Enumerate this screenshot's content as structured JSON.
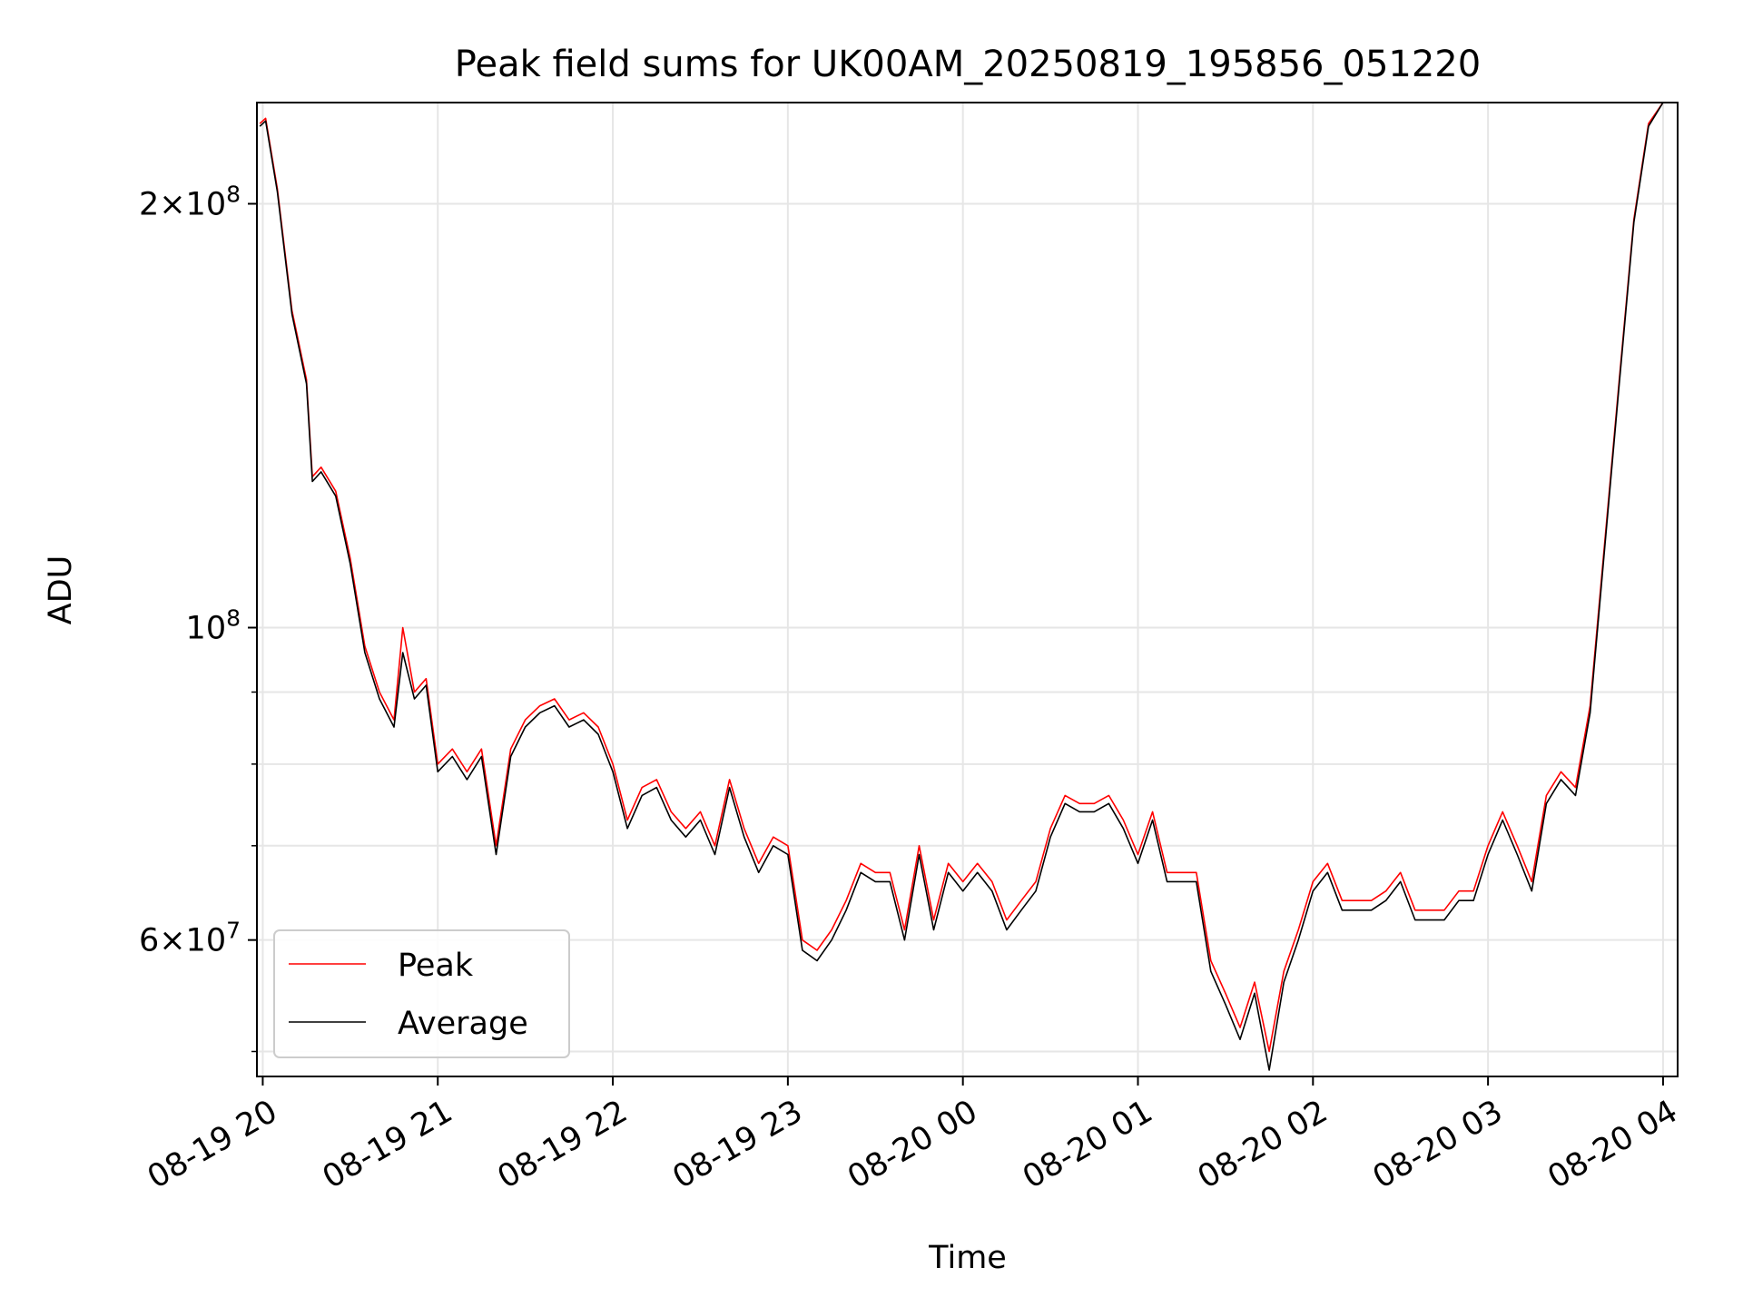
{
  "chart_data": {
    "type": "line",
    "title": "Peak field sums for UK00AM_20250819_195856_051220",
    "xlabel": "Time",
    "ylabel": "ADU",
    "yscale": "log",
    "grid": true,
    "legend_position": "lower-left",
    "x_range": [
      "2025-08-19 19:58",
      "2025-08-20 04:05"
    ],
    "ylim": [
      48000000,
      236000000
    ],
    "x_ticks": [
      {
        "t": "2025-08-19 20:00",
        "label": "08-19 20"
      },
      {
        "t": "2025-08-19 21:00",
        "label": "08-19 21"
      },
      {
        "t": "2025-08-19 22:00",
        "label": "08-19 22"
      },
      {
        "t": "2025-08-19 23:00",
        "label": "08-19 23"
      },
      {
        "t": "2025-08-20 00:00",
        "label": "08-20 00"
      },
      {
        "t": "2025-08-20 01:00",
        "label": "08-20 01"
      },
      {
        "t": "2025-08-20 02:00",
        "label": "08-20 02"
      },
      {
        "t": "2025-08-20 03:00",
        "label": "08-20 03"
      },
      {
        "t": "2025-08-20 04:00",
        "label": "08-20 04"
      }
    ],
    "y_ticks": [
      {
        "value": 60000000,
        "label_mant": "6",
        "label_exp": "7"
      },
      {
        "value": 100000000,
        "label_mant": "",
        "label_exp": "8"
      },
      {
        "value": 200000000,
        "label_mant": "2",
        "label_exp": "8"
      }
    ],
    "y_minor": [
      50000000,
      70000000,
      80000000,
      90000000
    ],
    "series": [
      {
        "name": "Peak",
        "color": "#ff0000",
        "x": [
          "2025-08-19 19:59",
          "2025-08-19 20:01",
          "2025-08-19 20:05",
          "2025-08-19 20:10",
          "2025-08-19 20:15",
          "2025-08-19 20:17",
          "2025-08-19 20:20",
          "2025-08-19 20:25",
          "2025-08-19 20:30",
          "2025-08-19 20:35",
          "2025-08-19 20:40",
          "2025-08-19 20:45",
          "2025-08-19 20:48",
          "2025-08-19 20:52",
          "2025-08-19 20:56",
          "2025-08-19 21:00",
          "2025-08-19 21:05",
          "2025-08-19 21:10",
          "2025-08-19 21:15",
          "2025-08-19 21:20",
          "2025-08-19 21:25",
          "2025-08-19 21:30",
          "2025-08-19 21:35",
          "2025-08-19 21:40",
          "2025-08-19 21:45",
          "2025-08-19 21:50",
          "2025-08-19 21:55",
          "2025-08-19 22:00",
          "2025-08-19 22:05",
          "2025-08-19 22:10",
          "2025-08-19 22:15",
          "2025-08-19 22:20",
          "2025-08-19 22:25",
          "2025-08-19 22:30",
          "2025-08-19 22:35",
          "2025-08-19 22:40",
          "2025-08-19 22:45",
          "2025-08-19 22:50",
          "2025-08-19 22:55",
          "2025-08-19 23:00",
          "2025-08-19 23:05",
          "2025-08-19 23:10",
          "2025-08-19 23:15",
          "2025-08-19 23:20",
          "2025-08-19 23:25",
          "2025-08-19 23:30",
          "2025-08-19 23:35",
          "2025-08-19 23:40",
          "2025-08-19 23:45",
          "2025-08-19 23:50",
          "2025-08-19 23:55",
          "2025-08-20 00:00",
          "2025-08-20 00:05",
          "2025-08-20 00:10",
          "2025-08-20 00:15",
          "2025-08-20 00:20",
          "2025-08-20 00:25",
          "2025-08-20 00:30",
          "2025-08-20 00:35",
          "2025-08-20 00:40",
          "2025-08-20 00:45",
          "2025-08-20 00:50",
          "2025-08-20 00:55",
          "2025-08-20 01:00",
          "2025-08-20 01:05",
          "2025-08-20 01:10",
          "2025-08-20 01:15",
          "2025-08-20 01:20",
          "2025-08-20 01:25",
          "2025-08-20 01:30",
          "2025-08-20 01:35",
          "2025-08-20 01:40",
          "2025-08-20 01:45",
          "2025-08-20 01:50",
          "2025-08-20 01:55",
          "2025-08-20 02:00",
          "2025-08-20 02:05",
          "2025-08-20 02:10",
          "2025-08-20 02:15",
          "2025-08-20 02:20",
          "2025-08-20 02:25",
          "2025-08-20 02:30",
          "2025-08-20 02:35",
          "2025-08-20 02:40",
          "2025-08-20 02:45",
          "2025-08-20 02:50",
          "2025-08-20 02:55",
          "2025-08-20 03:00",
          "2025-08-20 03:05",
          "2025-08-20 03:10",
          "2025-08-20 03:15",
          "2025-08-20 03:20",
          "2025-08-20 03:25",
          "2025-08-20 03:30",
          "2025-08-20 03:35",
          "2025-08-20 03:40",
          "2025-08-20 03:45",
          "2025-08-20 03:50",
          "2025-08-20 03:55",
          "2025-08-20 04:00"
        ],
        "y": [
          228000000,
          230000000,
          205000000,
          168000000,
          150000000,
          128000000,
          130000000,
          125000000,
          112000000,
          97000000,
          90000000,
          86000000,
          100000000,
          90000000,
          92000000,
          80000000,
          82000000,
          79000000,
          82000000,
          70000000,
          82000000,
          86000000,
          88000000,
          89000000,
          86000000,
          87000000,
          85000000,
          80000000,
          73000000,
          77000000,
          78000000,
          74000000,
          72000000,
          74000000,
          70000000,
          78000000,
          72000000,
          68000000,
          71000000,
          70000000,
          60000000,
          59000000,
          61000000,
          64000000,
          68000000,
          67000000,
          67000000,
          61000000,
          70000000,
          62000000,
          68000000,
          66000000,
          68000000,
          66000000,
          62000000,
          64000000,
          66000000,
          72000000,
          76000000,
          75000000,
          75000000,
          76000000,
          73000000,
          69000000,
          74000000,
          67000000,
          67000000,
          67000000,
          58000000,
          55000000,
          52000000,
          56000000,
          50000000,
          57000000,
          61000000,
          66000000,
          68000000,
          64000000,
          64000000,
          64000000,
          65000000,
          67000000,
          63000000,
          63000000,
          63000000,
          65000000,
          65000000,
          70000000,
          74000000,
          70000000,
          66000000,
          76000000,
          79000000,
          77000000,
          88000000,
          115000000,
          150000000,
          195000000,
          228000000,
          236000000
        ]
      },
      {
        "name": "Average",
        "color": "#000000",
        "x": [
          "2025-08-19 19:59",
          "2025-08-19 20:01",
          "2025-08-19 20:05",
          "2025-08-19 20:10",
          "2025-08-19 20:15",
          "2025-08-19 20:17",
          "2025-08-19 20:20",
          "2025-08-19 20:25",
          "2025-08-19 20:30",
          "2025-08-19 20:35",
          "2025-08-19 20:40",
          "2025-08-19 20:45",
          "2025-08-19 20:48",
          "2025-08-19 20:52",
          "2025-08-19 20:56",
          "2025-08-19 21:00",
          "2025-08-19 21:05",
          "2025-08-19 21:10",
          "2025-08-19 21:15",
          "2025-08-19 21:20",
          "2025-08-19 21:25",
          "2025-08-19 21:30",
          "2025-08-19 21:35",
          "2025-08-19 21:40",
          "2025-08-19 21:45",
          "2025-08-19 21:50",
          "2025-08-19 21:55",
          "2025-08-19 22:00",
          "2025-08-19 22:05",
          "2025-08-19 22:10",
          "2025-08-19 22:15",
          "2025-08-19 22:20",
          "2025-08-19 22:25",
          "2025-08-19 22:30",
          "2025-08-19 22:35",
          "2025-08-19 22:40",
          "2025-08-19 22:45",
          "2025-08-19 22:50",
          "2025-08-19 22:55",
          "2025-08-19 23:00",
          "2025-08-19 23:05",
          "2025-08-19 23:10",
          "2025-08-19 23:15",
          "2025-08-19 23:20",
          "2025-08-19 23:25",
          "2025-08-19 23:30",
          "2025-08-19 23:35",
          "2025-08-19 23:40",
          "2025-08-19 23:45",
          "2025-08-19 23:50",
          "2025-08-19 23:55",
          "2025-08-20 00:00",
          "2025-08-20 00:05",
          "2025-08-20 00:10",
          "2025-08-20 00:15",
          "2025-08-20 00:20",
          "2025-08-20 00:25",
          "2025-08-20 00:30",
          "2025-08-20 00:35",
          "2025-08-20 00:40",
          "2025-08-20 00:45",
          "2025-08-20 00:50",
          "2025-08-20 00:55",
          "2025-08-20 01:00",
          "2025-08-20 01:05",
          "2025-08-20 01:10",
          "2025-08-20 01:15",
          "2025-08-20 01:20",
          "2025-08-20 01:25",
          "2025-08-20 01:30",
          "2025-08-20 01:35",
          "2025-08-20 01:40",
          "2025-08-20 01:45",
          "2025-08-20 01:50",
          "2025-08-20 01:55",
          "2025-08-20 02:00",
          "2025-08-20 02:05",
          "2025-08-20 02:10",
          "2025-08-20 02:15",
          "2025-08-20 02:20",
          "2025-08-20 02:25",
          "2025-08-20 02:30",
          "2025-08-20 02:35",
          "2025-08-20 02:40",
          "2025-08-20 02:45",
          "2025-08-20 02:50",
          "2025-08-20 02:55",
          "2025-08-20 03:00",
          "2025-08-20 03:05",
          "2025-08-20 03:10",
          "2025-08-20 03:15",
          "2025-08-20 03:20",
          "2025-08-20 03:25",
          "2025-08-20 03:30",
          "2025-08-20 03:35",
          "2025-08-20 03:40",
          "2025-08-20 03:45",
          "2025-08-20 03:50",
          "2025-08-20 03:55",
          "2025-08-20 04:00"
        ],
        "y": [
          227000000,
          229000000,
          204000000,
          167000000,
          149000000,
          127000000,
          129000000,
          124000000,
          111000000,
          96000000,
          89000000,
          85000000,
          96000000,
          89000000,
          91000000,
          79000000,
          81000000,
          78000000,
          81000000,
          69000000,
          81000000,
          85000000,
          87000000,
          88000000,
          85000000,
          86000000,
          84000000,
          79000000,
          72000000,
          76000000,
          77000000,
          73000000,
          71000000,
          73000000,
          69000000,
          77000000,
          71000000,
          67000000,
          70000000,
          69000000,
          59000000,
          58000000,
          60000000,
          63000000,
          67000000,
          66000000,
          66000000,
          60000000,
          69000000,
          61000000,
          67000000,
          65000000,
          67000000,
          65000000,
          61000000,
          63000000,
          65000000,
          71000000,
          75000000,
          74000000,
          74000000,
          75000000,
          72000000,
          68000000,
          73000000,
          66000000,
          66000000,
          66000000,
          57000000,
          54000000,
          51000000,
          55000000,
          48500000,
          56000000,
          60000000,
          65000000,
          67000000,
          63000000,
          63000000,
          63000000,
          64000000,
          66000000,
          62000000,
          62000000,
          62000000,
          64000000,
          64000000,
          69000000,
          73000000,
          69000000,
          65000000,
          75000000,
          78000000,
          76000000,
          87000000,
          114000000,
          149000000,
          194000000,
          227000000,
          236000000
        ]
      }
    ]
  }
}
